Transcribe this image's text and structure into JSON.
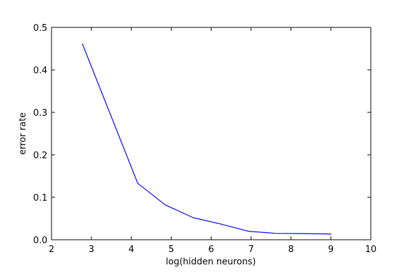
{
  "chart_data": {
    "type": "line",
    "title": "",
    "xlabel": "log(hidden neurons)",
    "ylabel": "error rate",
    "xlim": [
      2,
      10
    ],
    "ylim": [
      0.0,
      0.5
    ],
    "xticks": [
      2,
      3,
      4,
      5,
      6,
      7,
      8,
      9,
      10
    ],
    "yticks": [
      0.0,
      0.1,
      0.2,
      0.3,
      0.4,
      0.5
    ],
    "xtick_labels": [
      "2",
      "3",
      "4",
      "5",
      "6",
      "7",
      "8",
      "9",
      "10"
    ],
    "ytick_labels": [
      "0.0",
      "0.1",
      "0.2",
      "0.3",
      "0.4",
      "0.5"
    ],
    "grid": false,
    "legend": "none",
    "series": [
      {
        "color": "#0000ff",
        "x": [
          2.77,
          4.16,
          4.85,
          5.55,
          6.24,
          6.93,
          7.62,
          8.32,
          9.01
        ],
        "y": [
          0.462,
          0.133,
          0.082,
          0.052,
          0.037,
          0.02,
          0.015,
          0.0145,
          0.0135
        ]
      }
    ]
  }
}
